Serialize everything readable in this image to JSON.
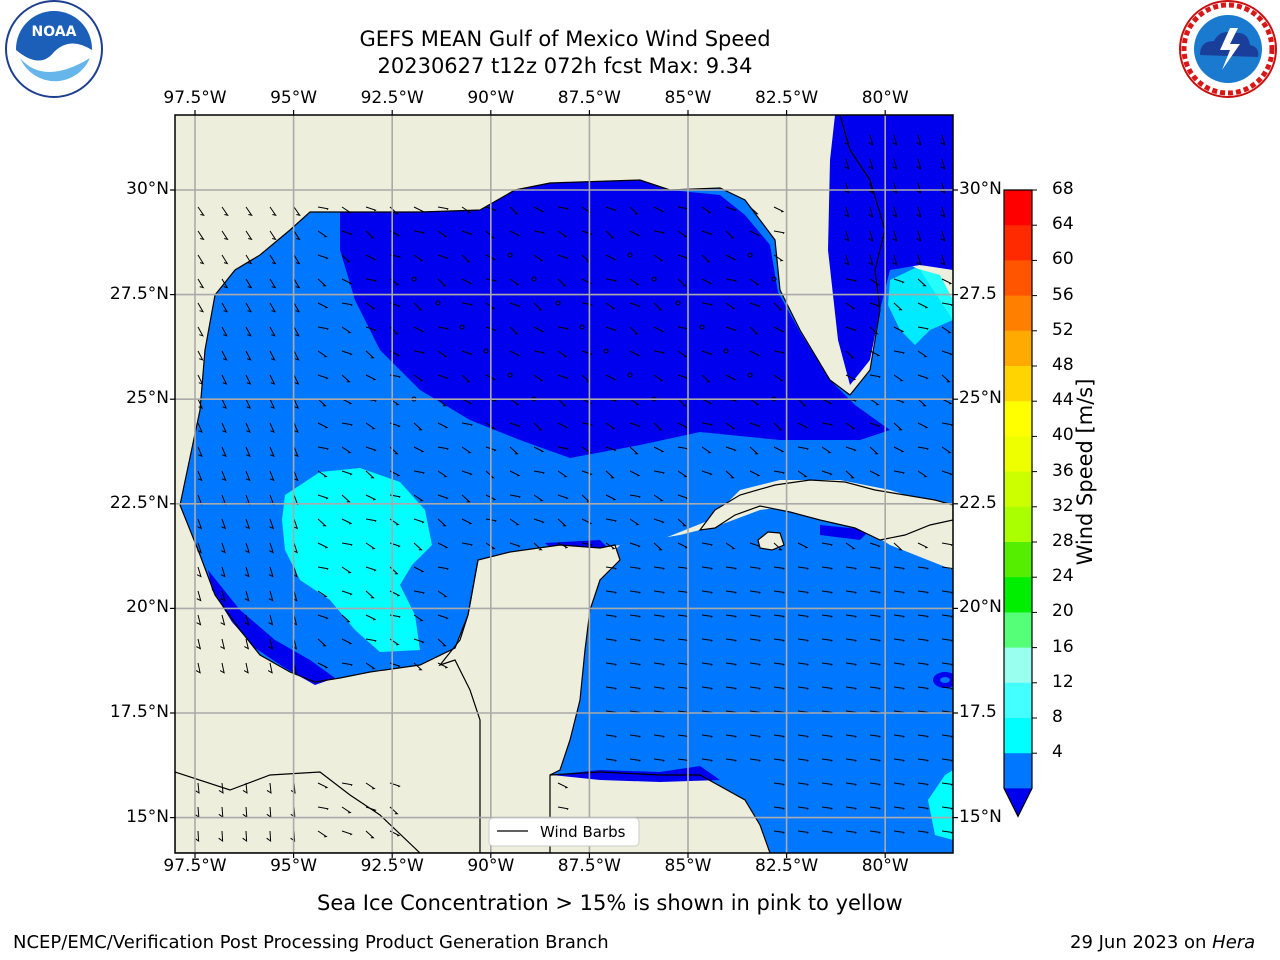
{
  "header": {
    "title_line1": "GEFS MEAN Gulf of Mexico Wind Speed",
    "title_line2": "20230627 t12z 072h fcst   Max: 9.34",
    "left_logo": {
      "icon": "noaa-logo-icon",
      "text": "NOAA"
    },
    "right_logo": {
      "icon": "nws-logo-icon"
    }
  },
  "map": {
    "lon_labels": [
      "97.5°W",
      "95°W",
      "92.5°W",
      "90°W",
      "87.5°W",
      "85°W",
      "82.5°W",
      "80°W"
    ],
    "lat_labels": [
      "30°N",
      "27.5°N",
      "25°N",
      "22.5°N",
      "20°N",
      "17.5°N",
      "15°N"
    ],
    "right_lat_labels": [
      "30°N",
      "27.5",
      "25°N",
      "22.5",
      "20°N",
      "17.5",
      "15°N"
    ],
    "legend_label": "Wind Barbs",
    "colors": {
      "land": "#eeeedd",
      "level_lt4": "#0000ee",
      "level_4_8": "#0077ff",
      "level_8_12": "#00ffff",
      "grid": "#aaaaaa"
    }
  },
  "colorbar": {
    "label": "Wind Speed [m/s]",
    "ticks": [
      "68",
      "64",
      "60",
      "56",
      "52",
      "48",
      "44",
      "40",
      "36",
      "32",
      "28",
      "24",
      "20",
      "16",
      "12",
      "8",
      "4"
    ],
    "colors": [
      "#ff0000",
      "#ff2a00",
      "#ff5500",
      "#ff8000",
      "#ffaa00",
      "#ffd400",
      "#ffff00",
      "#eeff00",
      "#ccff00",
      "#aaff00",
      "#55ee00",
      "#00ee00",
      "#55ff77",
      "#99ffee",
      "#44ffff",
      "#00ffff",
      "#0077ff"
    ],
    "extend_color": "#0000ee"
  },
  "caption": "Sea Ice Concentration > 15% is shown in pink to yellow",
  "footer": {
    "left": "NCEP/EMC/Verification Post Processing Product Generation Branch",
    "right_date": "29 Jun 2023 on",
    "right_machine": "Hera"
  }
}
